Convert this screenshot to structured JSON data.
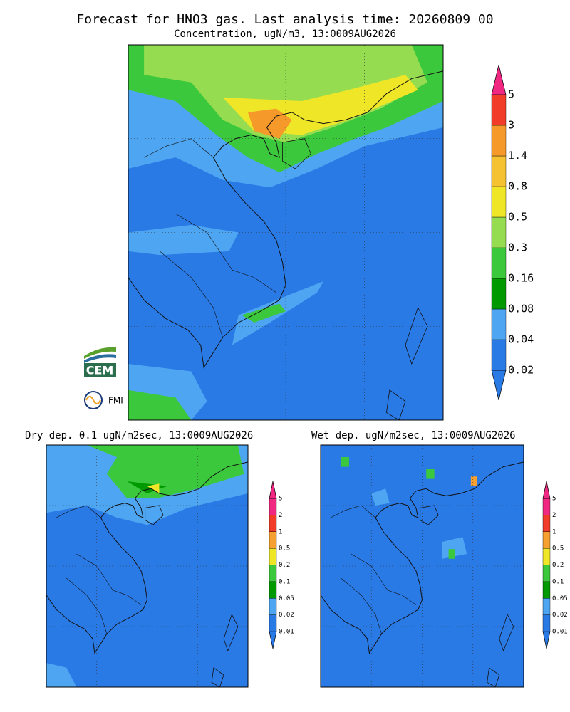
{
  "title": "Forecast for HNO3 gas. Last analysis time: 20260809 00",
  "subtitle": "Concentration, ugN/m3, 13:0009AUG2026",
  "main_legend": {
    "labels": [
      "0.02",
      "0.04",
      "0.08",
      "0.16",
      "0.3",
      "0.5",
      "0.8",
      "1.4",
      "3",
      "5"
    ],
    "colors": [
      "#2a7ae6",
      "#2a7ae6",
      "#4ea6f2",
      "#009a00",
      "#3cc83c",
      "#96dc50",
      "#f0e628",
      "#f5c232",
      "#f59a2a",
      "#f03c28",
      "#f02882"
    ]
  },
  "panels": [
    {
      "title": "Dry dep. 0.1 ugN/m2sec, 13:0009AUG2026"
    },
    {
      "title": "Wet dep. ugN/m2sec, 13:0009AUG2026"
    }
  ],
  "small_legend": {
    "labels": [
      "0.01",
      "0.02",
      "0.05",
      "0.1",
      "0.2",
      "0.5",
      "1",
      "2",
      "5"
    ],
    "colors": [
      "#2a7ae6",
      "#2a7ae6",
      "#4ea6f2",
      "#009a00",
      "#3cc83c",
      "#f0e628",
      "#f5a030",
      "#f03c28",
      "#f02882",
      "#f02882"
    ]
  },
  "logos": [
    "CEM",
    "FMI"
  ]
}
